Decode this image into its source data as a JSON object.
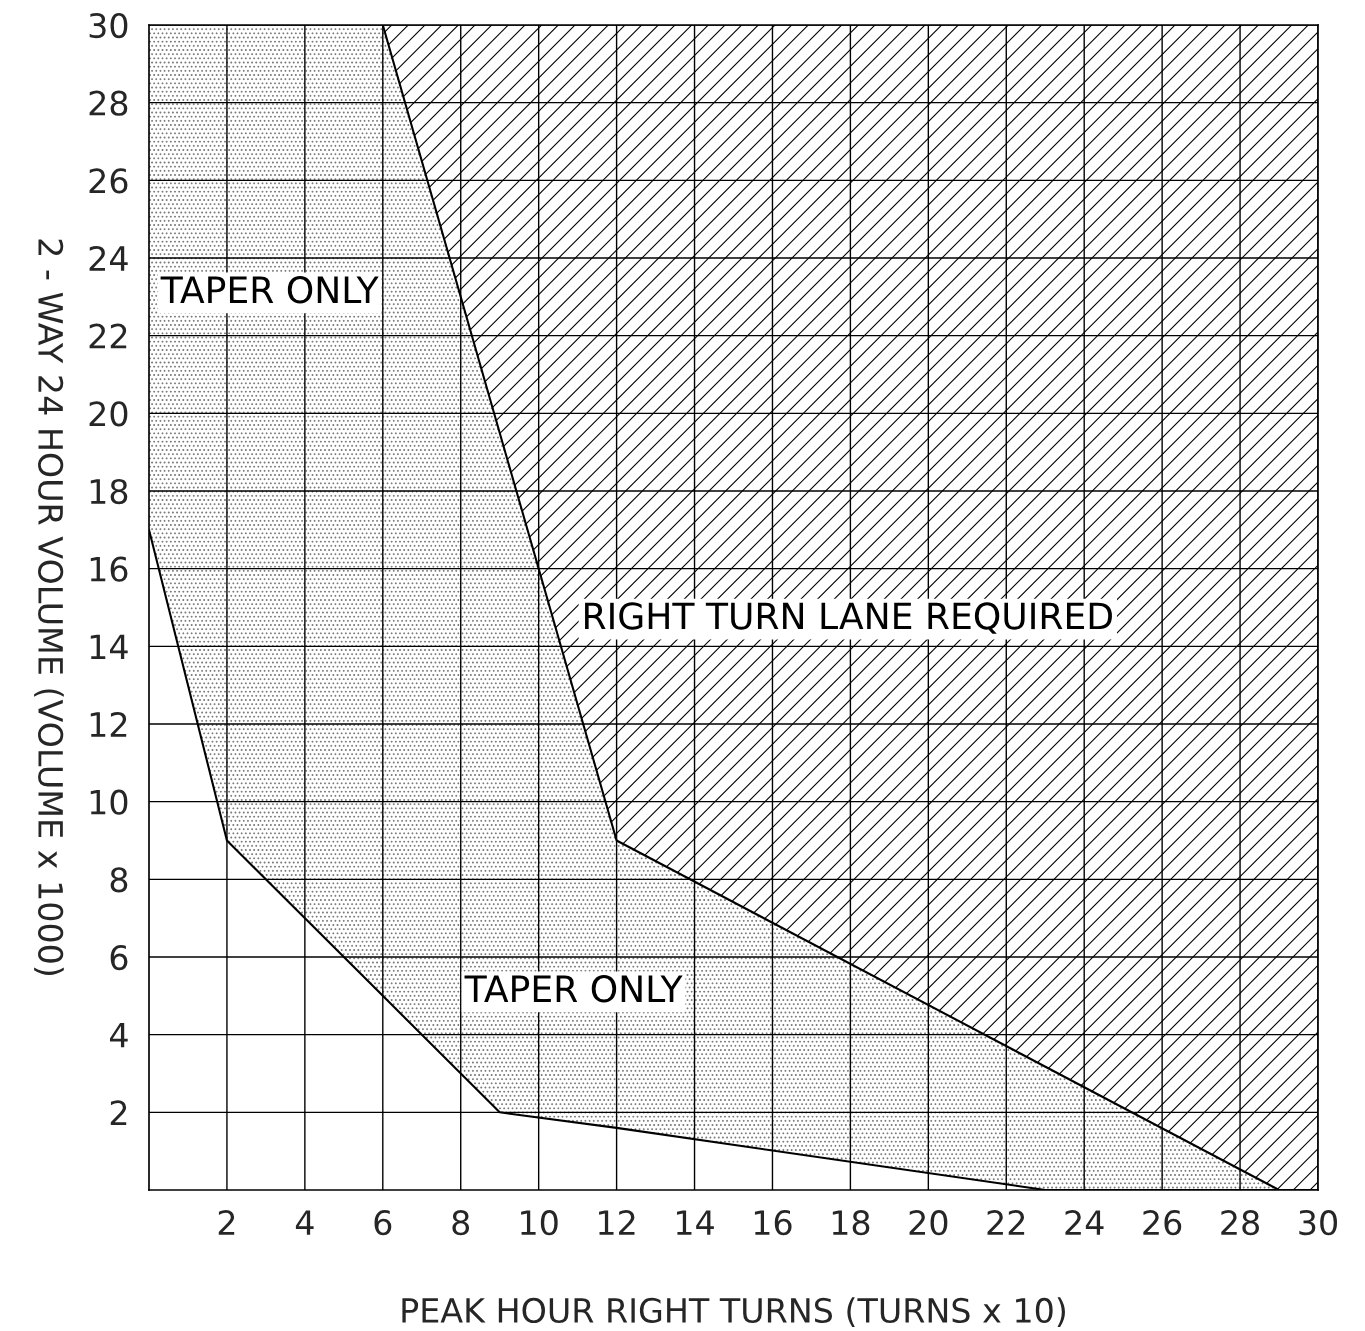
{
  "chart_data": {
    "type": "line",
    "xlabel": "PEAK HOUR RIGHT TURNS (TURNS x 10)",
    "ylabel": "2 - WAY 24 HOUR VOLUME (VOLUME x 1000)",
    "series": [
      {
        "x": [
          0,
          2,
          6,
          9,
          12,
          23,
          29
        ],
        "values": [
          17,
          9,
          5,
          2,
          1.6,
          0,
          0
        ],
        "lower": [
          17,
          9,
          5,
          2,
          1.6,
          0,
          0
        ],
        "upper": [
          30,
          30,
          30,
          19.5,
          9,
          3.2,
          0
        ],
        "color": "#000000"
      },
      {
        "x": [
          6,
          12,
          29,
          30
        ],
        "values": [
          30,
          9,
          0,
          0
        ],
        "lower": [
          30,
          9,
          0,
          0
        ],
        "upper": [
          30,
          30,
          30,
          30
        ],
        "color": "#000000"
      }
    ],
    "xlim": [
      0,
      30
    ],
    "ylim": [
      0,
      30
    ],
    "xticks": [
      2,
      4,
      6,
      8,
      10,
      12,
      14,
      16,
      18,
      20,
      22,
      24,
      26,
      28,
      30
    ],
    "yticks": [
      2,
      4,
      6,
      8,
      10,
      12,
      14,
      16,
      18,
      20,
      22,
      24,
      26,
      28,
      30
    ],
    "grid": true,
    "marker": "none",
    "line_style": "solid",
    "annotations": [
      "TAPER ONLY",
      "TAPER ONLY",
      "RIGHT TURN LANE REQUIRED"
    ]
  }
}
